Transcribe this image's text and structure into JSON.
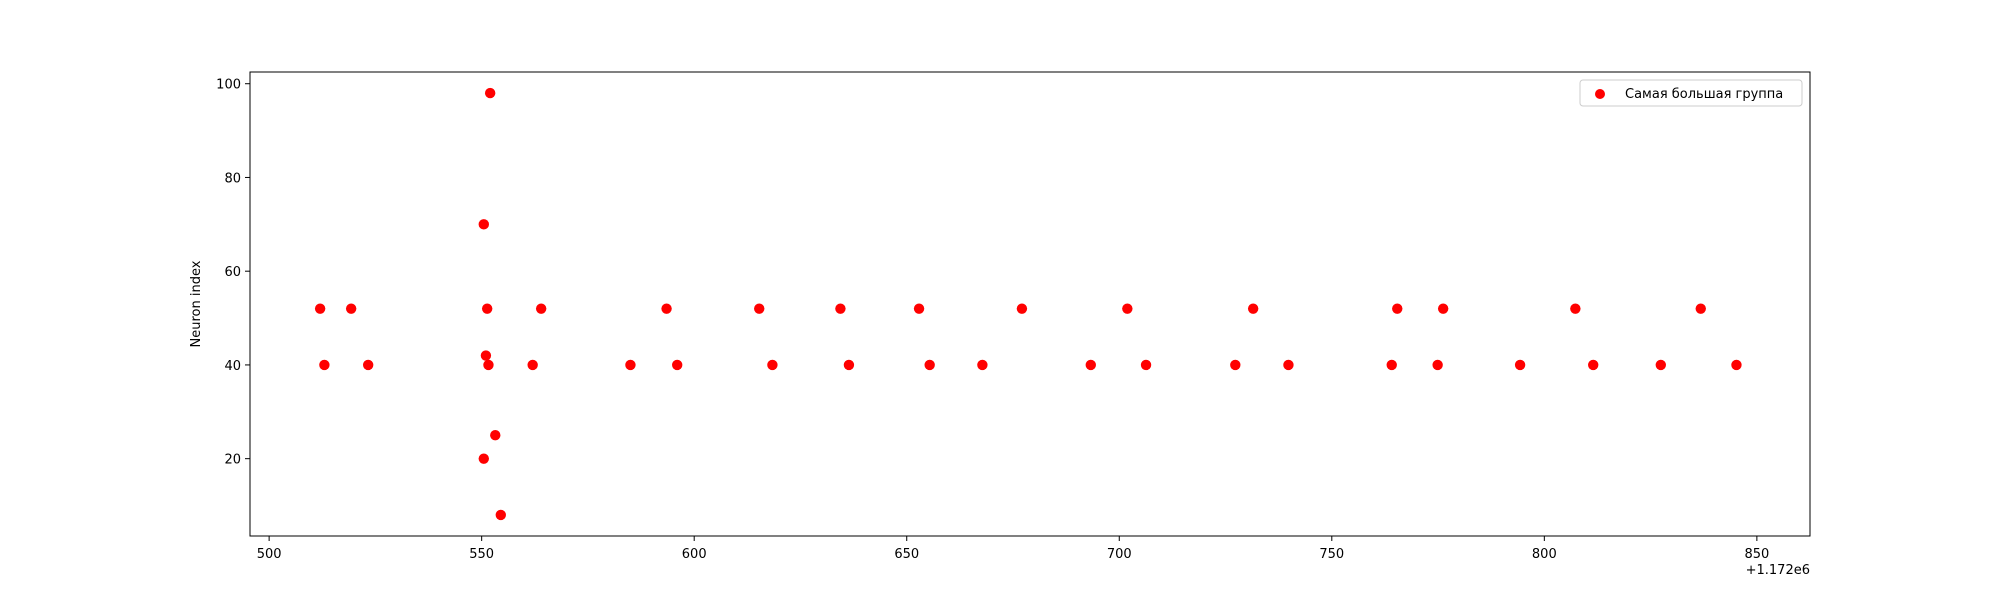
{
  "chart_data": {
    "type": "scatter",
    "title": "",
    "xlabel": "",
    "ylabel": "Neuron index",
    "x_offset_label": "+1.172e6",
    "xlim": [
      495.5,
      862.5
    ],
    "ylim": [
      3.5,
      102.5
    ],
    "xticks": [
      500,
      550,
      600,
      650,
      700,
      750,
      800,
      850
    ],
    "yticks": [
      20,
      40,
      60,
      80,
      100
    ],
    "grid": false,
    "legend_position": "top-right",
    "series": [
      {
        "name": "Самая большая группа",
        "color": "#ff0000",
        "x": [
          512.0,
          513.0,
          519.3,
          523.3,
          550.5,
          550.5,
          551.0,
          551.3,
          551.6,
          552.0,
          553.2,
          554.5,
          562.0,
          564.0,
          585.0,
          593.5,
          596.0,
          615.3,
          618.4,
          634.4,
          636.4,
          652.9,
          655.4,
          667.8,
          677.1,
          693.3,
          701.9,
          706.3,
          727.3,
          731.5,
          739.8,
          764.1,
          765.4,
          774.9,
          776.2,
          794.3,
          807.3,
          811.5,
          827.4,
          836.8,
          845.2
        ],
        "y": [
          52,
          40,
          52,
          40,
          70,
          20,
          42,
          52,
          40,
          98,
          25,
          8,
          40,
          52,
          40,
          52,
          40,
          52,
          40,
          52,
          40,
          52,
          40,
          40,
          52,
          40,
          52,
          40,
          40,
          52,
          40,
          40,
          52,
          40,
          52,
          40,
          52,
          40,
          40,
          52,
          40
        ]
      }
    ]
  }
}
